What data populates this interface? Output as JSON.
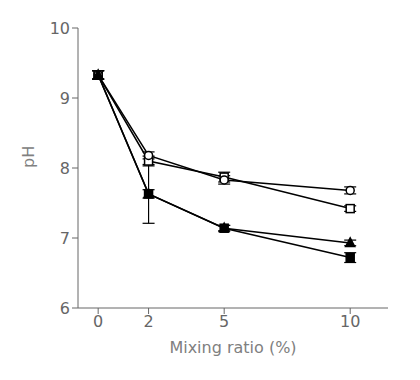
{
  "chart_data": {
    "type": "line",
    "xlabel": "Mixing ratio (%)",
    "ylabel": "pH",
    "x": [
      0,
      2,
      5,
      10
    ],
    "series": [
      {
        "color": "#000000",
        "marker": "filled_square",
        "values": [
          9.33,
          7.63,
          7.14,
          6.72
        ],
        "yerr": [
          0.06,
          0.42,
          0.04,
          0.07
        ]
      },
      {
        "color": "#000000",
        "marker": "open_square",
        "values": [
          9.33,
          8.1,
          7.87,
          7.42
        ],
        "yerr": [
          0.06,
          0.07,
          0.07,
          0.04
        ]
      },
      {
        "color": "#000000",
        "marker": "open_circle",
        "values": [
          9.33,
          8.18,
          7.83,
          7.68
        ],
        "yerr": [
          0.06,
          0.05,
          0.06,
          0.05
        ]
      },
      {
        "color": "#000000",
        "marker": "filled_triangle",
        "values": [
          9.33,
          7.63,
          7.14,
          6.93
        ],
        "yerr": [
          0.06,
          0.06,
          0.04,
          0.04
        ]
      }
    ],
    "xlim": [
      -0.8,
      11.5
    ],
    "ylim": [
      6,
      10
    ],
    "xticks": [
      0,
      2,
      5,
      10
    ],
    "yticks": [
      6,
      7,
      8,
      9,
      10
    ],
    "grid": false
  }
}
